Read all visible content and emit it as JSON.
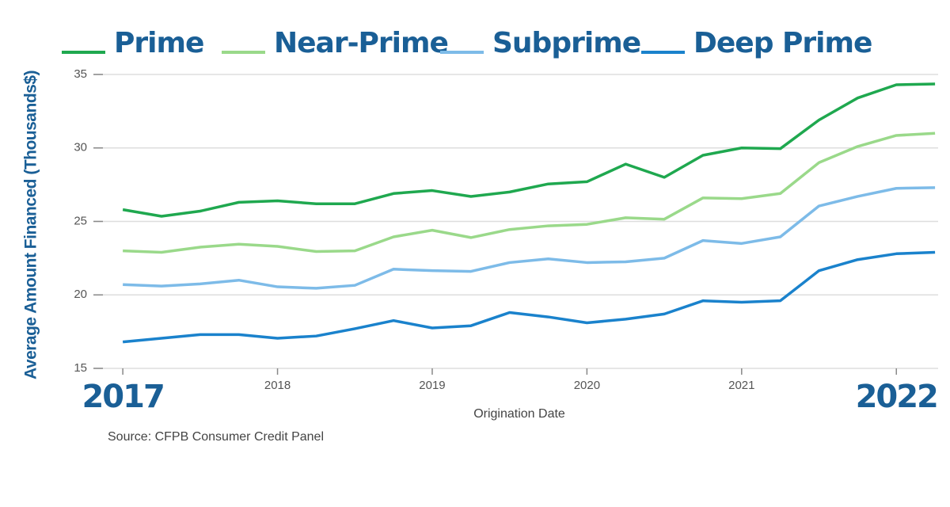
{
  "chart_data": {
    "type": "line",
    "x_label": "Origination Date",
    "y_label": "Average Amount Financed (Thousands$)",
    "source": "Source: CFPB Consumer Credit Panel",
    "x": [
      2017,
      2017.25,
      2017.5,
      2017.75,
      2018,
      2018.25,
      2018.5,
      2018.75,
      2019,
      2019.25,
      2019.5,
      2019.75,
      2020,
      2020.25,
      2020.5,
      2020.75,
      2021,
      2021.25,
      2021.5,
      2021.75,
      2022,
      2022.25
    ],
    "series": [
      {
        "name": "Prime",
        "color": "#1fa84f",
        "values": [
          25.8,
          25.35,
          25.7,
          26.3,
          26.4,
          26.2,
          26.2,
          26.9,
          27.1,
          26.7,
          27.0,
          27.55,
          27.7,
          28.9,
          28.0,
          29.5,
          30.0,
          29.95,
          31.9,
          33.4,
          34.3,
          34.35
        ]
      },
      {
        "name": "Near-Prime",
        "color": "#9ad98a",
        "values": [
          23.0,
          22.9,
          23.25,
          23.45,
          23.3,
          22.95,
          23.0,
          23.95,
          24.4,
          23.9,
          24.45,
          24.7,
          24.8,
          25.25,
          25.15,
          26.6,
          26.55,
          26.9,
          29.0,
          30.1,
          30.85,
          31.0
        ]
      },
      {
        "name": "Subprime",
        "color": "#7dbbe8",
        "values": [
          20.7,
          20.6,
          20.75,
          21.0,
          20.55,
          20.45,
          20.65,
          21.75,
          21.65,
          21.6,
          22.2,
          22.45,
          22.2,
          22.25,
          22.5,
          23.7,
          23.5,
          23.95,
          26.05,
          26.7,
          27.25,
          27.3
        ]
      },
      {
        "name": "Deep Prime",
        "color": "#1a82cc",
        "values": [
          16.8,
          17.05,
          17.3,
          17.3,
          17.05,
          17.2,
          17.7,
          18.25,
          17.75,
          17.9,
          18.8,
          18.5,
          18.1,
          18.35,
          18.7,
          19.6,
          19.5,
          19.6,
          21.65,
          22.4,
          22.8,
          22.9
        ]
      }
    ],
    "xlim": [
      2016.81,
      2022.27
    ],
    "xticks": [
      2017,
      2018,
      2019,
      2020,
      2021,
      2022
    ],
    "ylim": [
      15,
      35
    ],
    "yticks": [
      15,
      20,
      25,
      30,
      35
    ],
    "grid": true,
    "legend": "top"
  }
}
